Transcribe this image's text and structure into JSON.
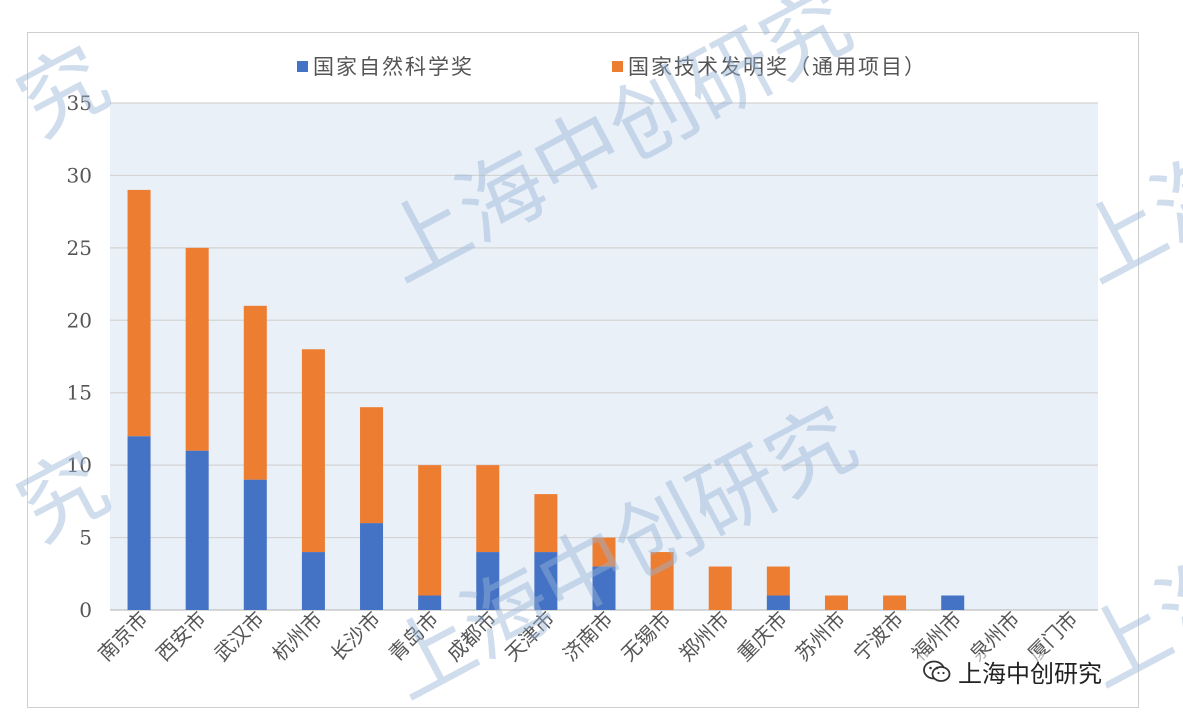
{
  "chart_data": {
    "type": "bar",
    "stacked": true,
    "categories": [
      "南京市",
      "西安市",
      "武汉市",
      "杭州市",
      "长沙市",
      "青岛市",
      "成都市",
      "天津市",
      "济南市",
      "无锡市",
      "郑州市",
      "重庆市",
      "苏州市",
      "宁波市",
      "福州市",
      "泉州市",
      "厦门市"
    ],
    "series": [
      {
        "name": "国家自然科学奖",
        "color": "#4472c4",
        "values": [
          12,
          11,
          9,
          4,
          6,
          1,
          4,
          4,
          3,
          0,
          0,
          1,
          0,
          0,
          1,
          0,
          0
        ]
      },
      {
        "name": "国家技术发明奖（通用项目）",
        "color": "#ed7d31",
        "values": [
          17,
          14,
          12,
          14,
          8,
          9,
          6,
          4,
          2,
          4,
          3,
          2,
          1,
          1,
          0,
          0,
          0
        ]
      }
    ],
    "ylim": [
      0,
      35
    ],
    "yticks": [
      "0",
      "5",
      "10",
      "15",
      "20",
      "25",
      "30",
      "35"
    ],
    "title": "",
    "xlabel": "",
    "ylabel": "",
    "grid": true,
    "legend_position": "top",
    "plot_background": "#e9f0f8"
  },
  "watermark": {
    "text": "上海中创研究",
    "fragments": [
      "上海中创研究",
      "上海中创研究",
      "上海",
      "上海",
      "究",
      "究"
    ]
  },
  "badge": {
    "text": "上海中创研究",
    "icon": "wechat-icon"
  }
}
